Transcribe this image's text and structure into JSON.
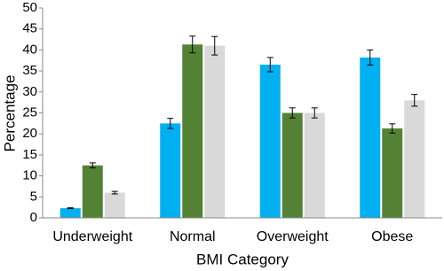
{
  "chart_data": {
    "type": "bar",
    "x_label": "BMI Category",
    "y_label": "Percentage",
    "categories": [
      "Underweight",
      "Normal",
      "Overweight",
      "Obese"
    ],
    "series": [
      {
        "color": "#00b0f0",
        "values": [
          2.3,
          22.5,
          36.5,
          38.2
        ],
        "errors": [
          0.1,
          1.2,
          1.7,
          1.8
        ]
      },
      {
        "color": "#548235",
        "values": [
          12.5,
          41.3,
          25.0,
          21.3
        ],
        "errors": [
          0.6,
          2.0,
          1.2,
          1.1
        ]
      },
      {
        "color": "#d9d9d9",
        "values": [
          6.0,
          41.0,
          25.0,
          28.0
        ],
        "errors": [
          0.3,
          2.2,
          1.2,
          1.4
        ]
      }
    ],
    "ylim": [
      0,
      50
    ],
    "yticks": [
      0,
      5,
      10,
      15,
      20,
      25,
      30,
      35,
      40,
      45,
      50
    ],
    "grid": false
  }
}
